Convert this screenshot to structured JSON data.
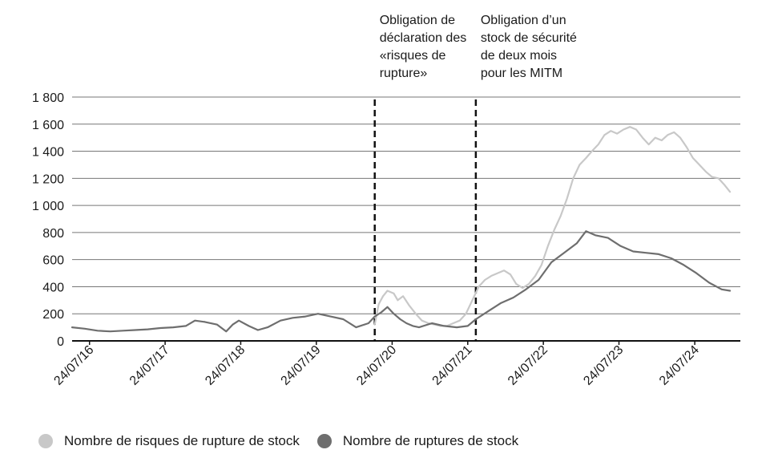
{
  "chart_data": {
    "type": "line",
    "xlabel": "",
    "ylabel": "",
    "ylim": [
      0,
      1800
    ],
    "yticks": [
      0,
      200,
      400,
      600,
      800,
      1000,
      1200,
      1400,
      1600,
      1800
    ],
    "ytick_labels": [
      "0",
      "200",
      "400",
      "600",
      "800",
      "1 000",
      "1 200",
      "1 400",
      "1 600",
      "1 800"
    ],
    "x_ticks": [
      "2016-07-24",
      "2017-07-24",
      "2018-07-24",
      "2019-07-24",
      "2020-07-24",
      "2021-07-24",
      "2022-07-24",
      "2023-07-24",
      "2024-07-24"
    ],
    "x_tick_labels": [
      "24/07/16",
      "24/07/17",
      "24/07/18",
      "24/07/19",
      "24/07/20",
      "24/07/21",
      "24/07/22",
      "24/07/23",
      "24/07/24"
    ],
    "xlim": [
      "2016-05-01",
      "2025-03-01"
    ],
    "grid": "horizontal",
    "legend_position": "bottom",
    "annotations": [
      {
        "date": "2020-05-01",
        "lines": [
          "Obligation de",
          "déclaration des",
          "«risques de",
          "rupture»"
        ]
      },
      {
        "date": "2021-09-01",
        "lines": [
          "Obligation d’un",
          "stock de sécurité",
          "de deux mois",
          "pour les MITM"
        ]
      }
    ],
    "series": [
      {
        "name": "Nombre de risques de rupture de stock",
        "color": "#c8c8c8",
        "x": [
          "2020-05-01",
          "2020-05-20",
          "2020-06-10",
          "2020-07-01",
          "2020-08-01",
          "2020-08-20",
          "2020-09-15",
          "2020-10-15",
          "2020-11-15",
          "2020-12-15",
          "2021-01-15",
          "2021-02-15",
          "2021-03-15",
          "2021-04-15",
          "2021-05-15",
          "2021-06-15",
          "2021-07-15",
          "2021-08-15",
          "2021-09-15",
          "2021-10-15",
          "2021-11-15",
          "2021-12-15",
          "2022-01-15",
          "2022-02-15",
          "2022-03-15",
          "2022-04-15",
          "2022-05-15",
          "2022-06-15",
          "2022-07-15",
          "2022-08-15",
          "2022-09-15",
          "2022-10-15",
          "2022-11-15",
          "2022-12-15",
          "2023-01-15",
          "2023-02-15",
          "2023-03-15",
          "2023-04-15",
          "2023-05-15",
          "2023-06-15",
          "2023-07-15",
          "2023-08-15",
          "2023-09-15",
          "2023-10-15",
          "2023-11-15",
          "2023-12-15",
          "2024-01-15",
          "2024-02-15",
          "2024-03-15",
          "2024-04-15",
          "2024-05-15",
          "2024-06-15",
          "2024-07-15",
          "2024-08-15",
          "2024-09-15",
          "2024-10-15",
          "2024-11-15",
          "2024-12-15",
          "2025-01-10"
        ],
        "values": [
          120,
          270,
          330,
          370,
          350,
          300,
          330,
          260,
          200,
          150,
          130,
          120,
          110,
          110,
          130,
          150,
          200,
          300,
          400,
          450,
          480,
          500,
          520,
          490,
          420,
          390,
          420,
          480,
          560,
          700,
          820,
          920,
          1050,
          1200,
          1300,
          1350,
          1400,
          1450,
          1520,
          1550,
          1530,
          1560,
          1580,
          1560,
          1500,
          1450,
          1500,
          1480,
          1520,
          1540,
          1500,
          1430,
          1350,
          1300,
          1250,
          1210,
          1200,
          1150,
          1100
        ]
      },
      {
        "name": "Nombre de ruptures de stock",
        "color": "#6e6e6e",
        "x": [
          "2016-05-01",
          "2016-07-01",
          "2016-09-01",
          "2016-11-01",
          "2017-01-01",
          "2017-03-01",
          "2017-05-01",
          "2017-07-01",
          "2017-09-01",
          "2017-11-01",
          "2017-12-15",
          "2018-02-01",
          "2018-04-01",
          "2018-05-15",
          "2018-06-15",
          "2018-07-15",
          "2018-09-01",
          "2018-10-15",
          "2018-12-01",
          "2019-02-01",
          "2019-04-01",
          "2019-06-01",
          "2019-08-01",
          "2019-10-01",
          "2019-12-01",
          "2020-02-01",
          "2020-04-01",
          "2020-05-01",
          "2020-06-01",
          "2020-07-01",
          "2020-08-01",
          "2020-09-01",
          "2020-10-01",
          "2020-11-01",
          "2020-12-01",
          "2021-02-01",
          "2021-04-01",
          "2021-06-01",
          "2021-07-24",
          "2021-09-01",
          "2021-11-01",
          "2022-01-01",
          "2022-03-01",
          "2022-05-01",
          "2022-07-01",
          "2022-09-01",
          "2022-11-01",
          "2023-01-01",
          "2023-02-15",
          "2023-04-01",
          "2023-06-01",
          "2023-08-01",
          "2023-10-01",
          "2023-12-01",
          "2024-02-01",
          "2024-04-01",
          "2024-06-01",
          "2024-08-01",
          "2024-10-01",
          "2024-12-01",
          "2025-01-10"
        ],
        "values": [
          100,
          90,
          75,
          70,
          75,
          80,
          85,
          95,
          100,
          110,
          150,
          140,
          120,
          70,
          120,
          150,
          110,
          80,
          100,
          150,
          170,
          180,
          200,
          180,
          160,
          100,
          130,
          180,
          210,
          250,
          200,
          160,
          130,
          110,
          100,
          130,
          110,
          100,
          110,
          160,
          220,
          280,
          320,
          380,
          450,
          580,
          650,
          720,
          810,
          780,
          760,
          700,
          660,
          650,
          640,
          610,
          560,
          500,
          430,
          380,
          370
        ]
      }
    ]
  }
}
